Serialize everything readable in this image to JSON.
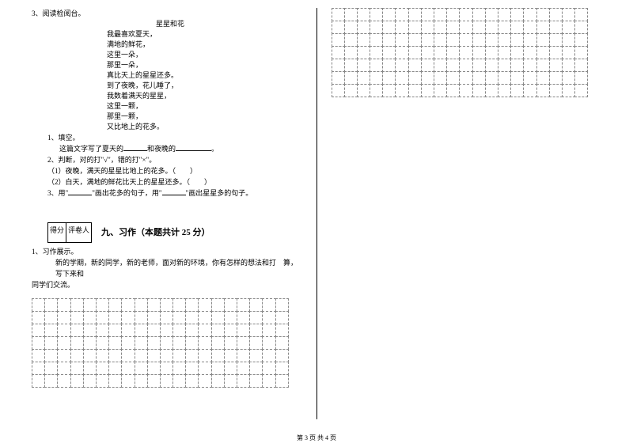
{
  "q3": {
    "num": "3、阅读检阅台。",
    "poem_title": "星星和花",
    "lines": [
      "我最喜欢夏天，",
      "满地的鲜花，",
      "这里一朵，",
      "那里一朵，",
      "真比天上的星星还多。",
      "到了夜晚，花儿睡了，",
      "我数着满天的星星，",
      "这里一颗，",
      "那里一颗，",
      "又比地上的花多。"
    ],
    "sub1": "1、填空。",
    "sub1_text_a": "这篇文字写了夏天的",
    "sub1_text_b": "和夜晚的",
    "sub1_text_c": "。",
    "sub2": "2、判断，对的打\"√\"，错的打\"×\"。",
    "sub2_1": "（1）夜晚，满天的星星比地上的花多。（　　）",
    "sub2_2": "（2）白天，满地的鲜花比天上的星星还多。（　　）",
    "sub3_a": "3、用\"",
    "sub3_b": "\"画出花多的句子，用\"",
    "sub3_c": "\"画出星星多的句子。"
  },
  "section9": {
    "score_label1": "得分",
    "score_label2": "评卷人",
    "title": "九、习作（本题共计 25 分）"
  },
  "essay": {
    "num": "1、习作展示。",
    "text1": "新的学期，新的同学，新的老师，面对新的环境，你有怎样的想法和打　算，写下来和",
    "text2": "同学们交流。"
  },
  "grid": {
    "left_rows": 7,
    "left_cols": 20,
    "right_rows": 7,
    "right_cols": 20
  },
  "footer": "第 3 页 共 4 页",
  "styles": {
    "bg": "#ffffff",
    "text_color": "#000000",
    "border_color": "#000000",
    "grid_dash_color": "#888888",
    "font_body": 9,
    "font_section": 11,
    "font_footer": 8
  }
}
